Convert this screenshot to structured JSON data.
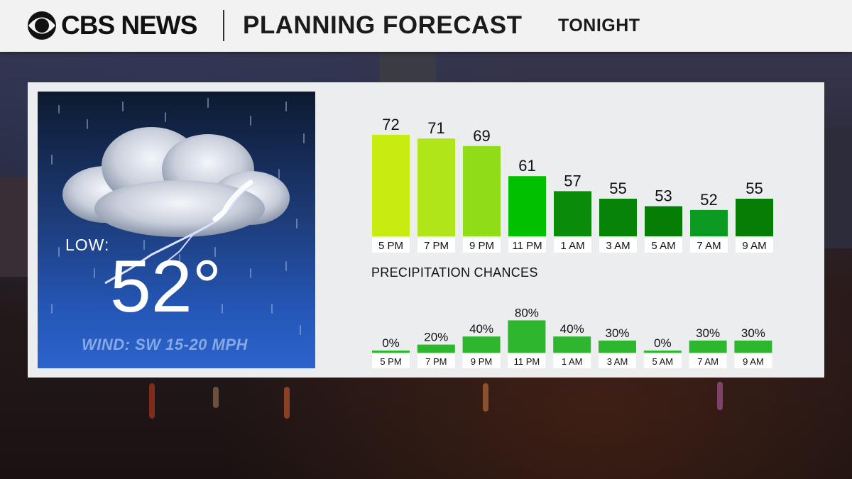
{
  "header": {
    "brand": "CBS NEWS",
    "title": "PLANNING FORECAST",
    "subtitle": "TONIGHT"
  },
  "tile": {
    "low_label": "LOW:",
    "low_value": "52°",
    "wind": "WIND: SW 15-20 MPH",
    "icon": "thunderstorm-rain-icon"
  },
  "chart_data": [
    {
      "type": "bar",
      "title": "",
      "categories": [
        "5 PM",
        "7 PM",
        "9 PM",
        "11 PM",
        "1 AM",
        "3 AM",
        "5 AM",
        "7 AM",
        "9 AM"
      ],
      "values": [
        72,
        71,
        69,
        61,
        57,
        55,
        53,
        52,
        55
      ],
      "ylim": [
        45,
        75
      ],
      "colors": [
        "#c8ec10",
        "#b0e619",
        "#8edd17",
        "#00c000",
        "#0a8c0a",
        "#078308",
        "#067e06",
        "#0c9a22",
        "#067e06"
      ],
      "grid": false
    },
    {
      "type": "bar",
      "title": "PRECIPITATION CHANCES",
      "categories": [
        "5 PM",
        "7 PM",
        "9 PM",
        "11 PM",
        "1 AM",
        "3 AM",
        "5 AM",
        "7 AM",
        "9 AM"
      ],
      "values": [
        0,
        20,
        40,
        80,
        40,
        30,
        0,
        30,
        30
      ],
      "value_labels": [
        "0%",
        "20%",
        "40%",
        "80%",
        "40%",
        "30%",
        "0%",
        "30%",
        "30%"
      ],
      "ylim": [
        0,
        100
      ],
      "color": "#2fb62f",
      "grid": false
    }
  ]
}
